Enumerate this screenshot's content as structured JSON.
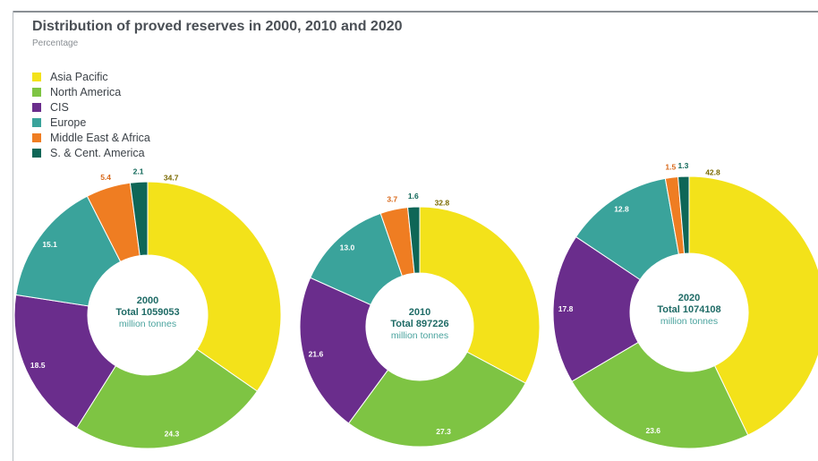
{
  "chart_data": {
    "type": "pie",
    "title": "Distribution of proved reserves in 2000, 2010 and 2020",
    "subtitle": "Percentage",
    "legend_position": "top-left",
    "series": [
      {
        "name": "Asia Pacific",
        "color": "#f3e21a"
      },
      {
        "name": "North America",
        "color": "#7ec443"
      },
      {
        "name": "CIS",
        "color": "#6a2d8c"
      },
      {
        "name": "Europe",
        "color": "#3aa39b"
      },
      {
        "name": "Middle East & Africa",
        "color": "#ef7d22"
      },
      {
        "name": "S. & Cent. America",
        "color": "#0e6657"
      }
    ],
    "charts": [
      {
        "year": "2000",
        "total_label": "Total 1059053",
        "unit": "million tonnes",
        "values": [
          34.7,
          24.3,
          18.5,
          15.1,
          5.4,
          2.1
        ]
      },
      {
        "year": "2010",
        "total_label": "Total 897226",
        "unit": "million tonnes",
        "values": [
          32.8,
          27.3,
          21.6,
          13.0,
          3.7,
          1.6
        ]
      },
      {
        "year": "2020",
        "total_label": "Total 1074108",
        "unit": "million tonnes",
        "values": [
          42.8,
          23.6,
          17.8,
          12.8,
          1.5,
          1.3
        ]
      }
    ]
  }
}
